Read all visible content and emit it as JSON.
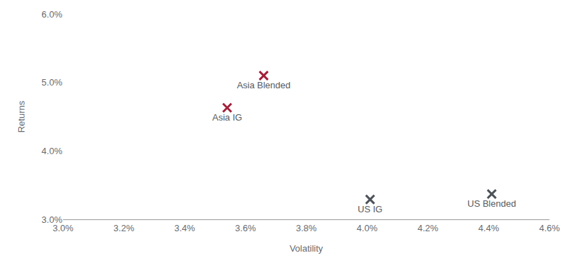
{
  "chart_data": {
    "type": "scatter",
    "x_label": "Volatility",
    "y_label": "Returns",
    "x": [
      3.66,
      3.54,
      4.01,
      4.41
    ],
    "values": [
      5.1,
      4.63,
      3.29,
      3.37
    ],
    "labels": [
      "Asia Blended",
      "Asia IG",
      "US IG",
      "US Blended"
    ],
    "colors": [
      "#a3203a",
      "#a3203a",
      "#4d5359",
      "#4d5359"
    ],
    "marker": "x",
    "xlim": [
      3.0,
      4.6
    ],
    "xticks": [
      {
        "value": 3.0,
        "label": "3.0%"
      },
      {
        "value": 3.2,
        "label": "3.2%"
      },
      {
        "value": 3.4,
        "label": "3.4%"
      },
      {
        "value": 3.6,
        "label": "3.6%"
      },
      {
        "value": 3.8,
        "label": "3.8%"
      },
      {
        "value": 4.0,
        "label": "4.0%"
      },
      {
        "value": 4.2,
        "label": "4.2%"
      },
      {
        "value": 4.4,
        "label": "4.4%"
      },
      {
        "value": 4.6,
        "label": "4.6%"
      }
    ],
    "ylim": [
      3.0,
      6.0
    ],
    "yticks": [
      {
        "value": 3.0,
        "label": "3.0%"
      },
      {
        "value": 4.0,
        "label": "4.0%"
      },
      {
        "value": 5.0,
        "label": "5.0%"
      },
      {
        "value": 6.0,
        "label": "6.0%"
      }
    ],
    "grid": false
  }
}
